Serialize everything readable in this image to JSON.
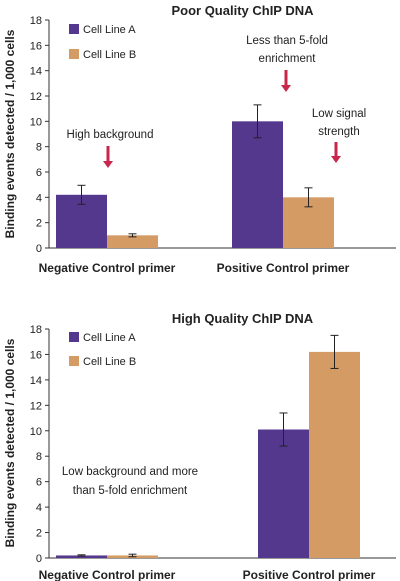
{
  "y_axis_label": "Binding events detected / 1,000 cells",
  "colors": {
    "cell_line_a": "#54388e",
    "cell_line_b": "#d49b64",
    "arrow": "#c8264a"
  },
  "chart_data": [
    {
      "type": "bar",
      "title": "Poor Quality ChIP DNA",
      "ylabel": "Binding events detected / 1,000 cells",
      "ylim": [
        0,
        18
      ],
      "yticks": [
        0,
        2,
        4,
        6,
        8,
        10,
        12,
        14,
        16,
        18
      ],
      "grid": false,
      "legend_position": "top-left",
      "categories": [
        "Negative Control primer",
        "Positive Control primer"
      ],
      "series": [
        {
          "name": "Cell Line A",
          "values": [
            4.2,
            10.0
          ],
          "errors": [
            0.75,
            1.3
          ]
        },
        {
          "name": "Cell Line B",
          "values": [
            1.0,
            4.0
          ],
          "errors": [
            0.12,
            0.75
          ]
        }
      ],
      "annotations": [
        {
          "lines": [
            "High background"
          ],
          "target": {
            "category": 0,
            "series": 0
          }
        },
        {
          "lines": [
            "Less than 5-fold",
            "enrichment"
          ],
          "target": {
            "category": 1,
            "series": 0
          }
        },
        {
          "lines": [
            "Low signal",
            "strength"
          ],
          "target": {
            "category": 1,
            "series": 1
          }
        }
      ]
    },
    {
      "type": "bar",
      "title": "High Quality ChIP DNA",
      "ylabel": "Binding events detected / 1,000 cells",
      "ylim": [
        0,
        18
      ],
      "yticks": [
        0,
        2,
        4,
        6,
        8,
        10,
        12,
        14,
        16,
        18
      ],
      "grid": false,
      "legend_position": "top-left",
      "categories": [
        "Negative Control primer",
        "Positive Control primer"
      ],
      "series": [
        {
          "name": "Cell Line A",
          "values": [
            0.2,
            10.1
          ],
          "errors": [
            0.05,
            1.3
          ]
        },
        {
          "name": "Cell Line B",
          "values": [
            0.2,
            16.2
          ],
          "errors": [
            0.1,
            1.3
          ]
        }
      ],
      "annotations": [
        {
          "lines": [
            "Low background and more",
            "than 5-fold enrichment"
          ]
        }
      ]
    }
  ]
}
